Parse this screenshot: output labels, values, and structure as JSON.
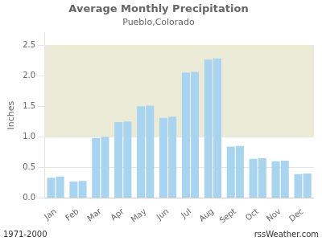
{
  "chart_data": {
    "type": "bar",
    "title": "Average Monthly Precipitation",
    "subtitle": "Pueblo,Colorado",
    "ylabel": "Inches",
    "categories": [
      "Jan",
      "Feb",
      "Mar",
      "Apr",
      "May",
      "Jun",
      "Jul",
      "Aug",
      "Sept",
      "Oct",
      "Nov",
      "Dec"
    ],
    "series": [
      {
        "color": "#a8d4f0",
        "values": [
          0.33,
          0.27,
          0.98,
          1.24,
          1.5,
          1.31,
          2.05,
          2.26,
          0.84,
          0.64,
          0.6,
          0.39
        ]
      },
      {
        "color": "#a8d4f0",
        "values": [
          0.35,
          0.28,
          1.0,
          1.25,
          1.51,
          1.33,
          2.06,
          2.28,
          0.85,
          0.65,
          0.61,
          0.4
        ]
      }
    ],
    "ylim": [
      0,
      2.7
    ],
    "yticks": [
      {
        "value": 0.0,
        "label": "0.0"
      },
      0.5,
      {
        "value": 1.0,
        "label": "1.0"
      },
      1.5,
      {
        "value": 2.0,
        "label": "2.0"
      },
      2.5
    ],
    "band": {
      "ymin": 1.0,
      "ymax": 2.5,
      "color": "#ebebd8"
    },
    "grid": true,
    "annotations": [
      "1971-2000",
      "rssWeather.com"
    ]
  }
}
